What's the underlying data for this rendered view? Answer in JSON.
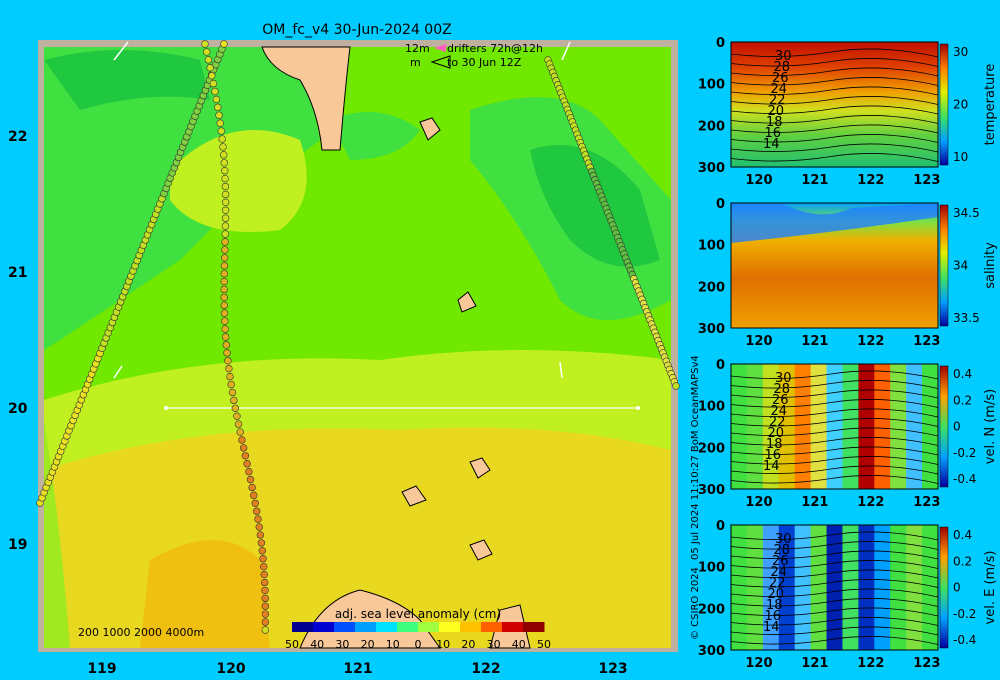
{
  "title": "OM_fc_v4  30-Jun-2024 00Z",
  "legend_drifters": {
    "line1_label": "12m",
    "line1_text": "drifters 72h@12h",
    "line2_label": "m",
    "line2_text": "to 30 Jun 12Z"
  },
  "depth_legend": "200  1000  2000  4000m",
  "colorbar": {
    "label": "adj. sea level anomaly (cm)",
    "ticks": [
      "50",
      "40",
      "30",
      "20",
      "10",
      "0",
      "10",
      "20",
      "30",
      "40",
      "50"
    ],
    "colors": [
      "#000090",
      "#0000d0",
      "#0050ff",
      "#00a0ff",
      "#00e0ff",
      "#40ff80",
      "#a0ff40",
      "#ffff20",
      "#ffc000",
      "#ff6000",
      "#d00000",
      "#900000"
    ]
  },
  "side_text": "05 Jul 2024 11:10:27 BoM OceanMAPSv4",
  "copyright": "© CSIRO 2024",
  "map": {
    "x_ticks": [
      "119",
      "120",
      "121",
      "122",
      "123"
    ],
    "y_ticks": [
      "22",
      "21",
      "20",
      "19"
    ],
    "colors": {
      "land": "#f8c898",
      "sea_green": "#40e040",
      "sea_dark": "#20c840",
      "sea_lime": "#70e800",
      "sea_yellow": "#c0f020",
      "sea_orange": "#e8d820",
      "border": "#c0b0a0"
    }
  },
  "chart_data": [
    {
      "type": "heatmap",
      "ylabel": "temperature",
      "x_ticks": [
        "120",
        "121",
        "122",
        "123"
      ],
      "y_ticks": [
        "0",
        "100",
        "200",
        "300"
      ],
      "cbar_ticks": [
        "30",
        "20",
        "10"
      ],
      "contour_labels": [
        "30",
        "28",
        "26",
        "24",
        "22",
        "20",
        "18",
        "16",
        "14"
      ],
      "xlim": [
        119.5,
        123.2
      ],
      "ylim": [
        300,
        0
      ]
    },
    {
      "type": "heatmap",
      "ylabel": "salinity",
      "x_ticks": [
        "120",
        "121",
        "122",
        "123"
      ],
      "y_ticks": [
        "0",
        "100",
        "200",
        "300"
      ],
      "cbar_ticks": [
        "34.5",
        "34",
        "33.5"
      ],
      "xlim": [
        119.5,
        123.2
      ],
      "ylim": [
        300,
        0
      ]
    },
    {
      "type": "heatmap",
      "ylabel": "vel. N (m/s)",
      "x_ticks": [
        "120",
        "121",
        "122",
        "123"
      ],
      "y_ticks": [
        "0",
        "100",
        "200",
        "300"
      ],
      "cbar_ticks": [
        "0.4",
        "0.2",
        "0",
        "-0.2",
        "-0.4"
      ],
      "contour_labels": [
        "30",
        "28",
        "26",
        "24",
        "22",
        "20",
        "18",
        "16",
        "14"
      ],
      "xlim": [
        119.5,
        123.2
      ],
      "ylim": [
        300,
        0
      ]
    },
    {
      "type": "heatmap",
      "ylabel": "vel. E (m/s)",
      "x_ticks": [
        "120",
        "121",
        "122",
        "123"
      ],
      "y_ticks": [
        "0",
        "100",
        "200",
        "300"
      ],
      "cbar_ticks": [
        "0.4",
        "0.2",
        "0",
        "-0.2",
        "-0.4"
      ],
      "contour_labels": [
        "30",
        "28",
        "26",
        "24",
        "22",
        "20",
        "18",
        "16",
        "14"
      ],
      "xlim": [
        119.5,
        123.2
      ],
      "ylim": [
        300,
        0
      ]
    }
  ]
}
